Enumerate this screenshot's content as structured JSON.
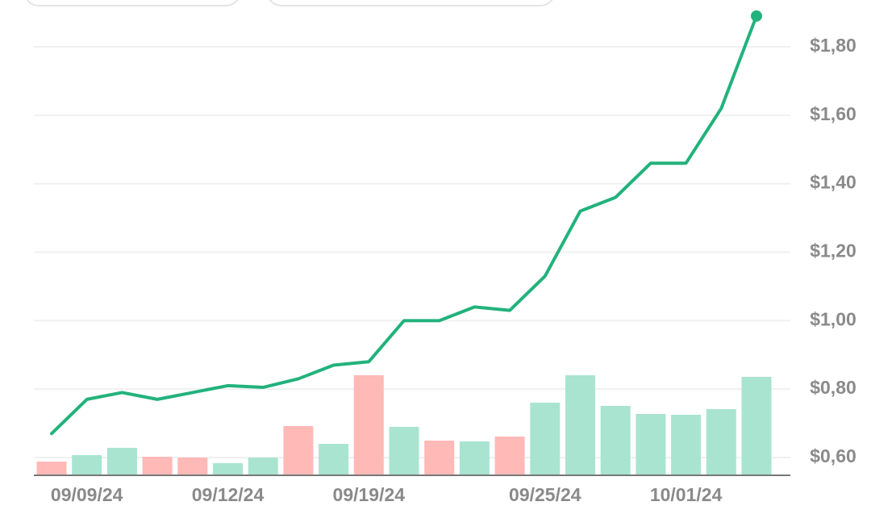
{
  "chart_data": {
    "type": "line",
    "categories": [
      null,
      "09/09/24",
      null,
      null,
      null,
      "09/12/24",
      null,
      null,
      null,
      "09/19/24",
      null,
      null,
      null,
      null,
      "09/25/24",
      null,
      null,
      null,
      "10/01/24",
      null,
      null
    ],
    "values": [
      0.67,
      0.77,
      0.79,
      0.77,
      0.79,
      0.81,
      0.805,
      0.83,
      0.87,
      0.88,
      1.0,
      1.0,
      1.04,
      1.03,
      1.13,
      1.32,
      1.36,
      1.46,
      1.46,
      1.62,
      1.89
    ],
    "color": "#22b27c",
    "volume": {
      "values": [
        17,
        25,
        34,
        23,
        22,
        15,
        22,
        61,
        39,
        124,
        60,
        43,
        42,
        48,
        90,
        124,
        86,
        76,
        75,
        82,
        122
      ],
      "colors": [
        "#ffb9b7",
        "#a9e4d0",
        "#a9e4d0",
        "#ffb9b7",
        "#ffb9b7",
        "#a9e4d0",
        "#a9e4d0",
        "#ffb9b7",
        "#a9e4d0",
        "#ffb9b7",
        "#a9e4d0",
        "#ffb9b7",
        "#a9e4d0",
        "#ffb9b7",
        "#a9e4d0",
        "#a9e4d0",
        "#a9e4d0",
        "#a9e4d0",
        "#a9e4d0",
        "#a9e4d0",
        "#a9e4d0"
      ]
    },
    "ylim": [
      0.6,
      1.8
    ],
    "yticks": [
      {
        "value": 0.6,
        "label": "$0,60"
      },
      {
        "value": 0.8,
        "label": "$0,80"
      },
      {
        "value": 1.0,
        "label": "$1,00"
      },
      {
        "value": 1.2,
        "label": "$1,20"
      },
      {
        "value": 1.4,
        "label": "$1,40"
      },
      {
        "value": 1.6,
        "label": "$1,60"
      },
      {
        "value": 1.8,
        "label": "$1,80"
      }
    ],
    "grid": true
  }
}
